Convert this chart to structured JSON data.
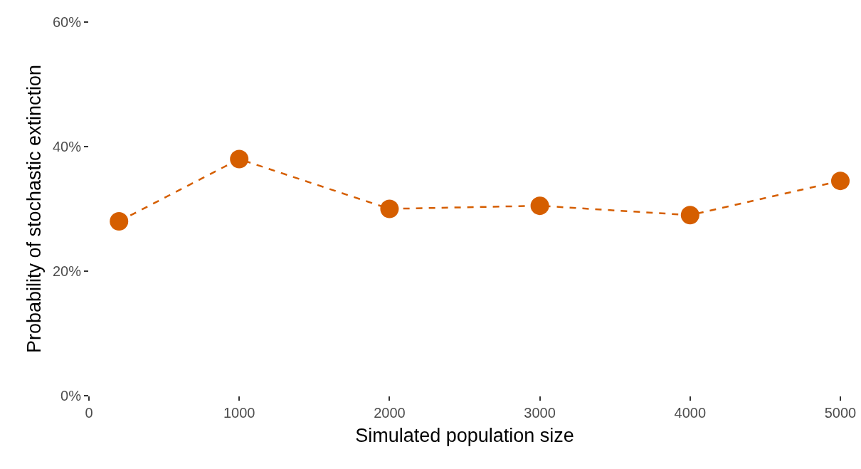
{
  "chart_data": {
    "type": "line",
    "xlabel": "Simulated population size",
    "ylabel": "Probability of stochastic extinction",
    "x": [
      200,
      1000,
      2000,
      3000,
      4000,
      5000
    ],
    "series": [
      {
        "color": "#d55e00",
        "values": [
          28,
          38,
          30,
          30.5,
          29,
          34.5
        ]
      }
    ],
    "xlim": [
      0,
      5000
    ],
    "xticks": [
      0,
      1000,
      2000,
      3000,
      4000,
      5000
    ],
    "ylim": [
      0,
      60
    ],
    "yticks": [
      {
        "value": 0,
        "label": "0%"
      },
      {
        "value": 20,
        "label": "20%"
      },
      {
        "value": 40,
        "label": "40%"
      },
      {
        "value": 60,
        "label": "60%"
      }
    ],
    "grid": false,
    "marker": "circle",
    "line_style": "dashed"
  }
}
